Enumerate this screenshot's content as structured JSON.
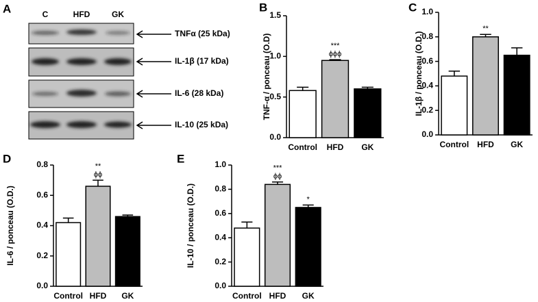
{
  "blot": {
    "panel_label": "A",
    "lanes": [
      "C",
      "HFD",
      "GK"
    ],
    "bands": [
      "TNFα (25 kDa)",
      "IL-1β (17 kDa)",
      "IL-6 (28 kDa)",
      "IL-10 (25 kDa)"
    ]
  },
  "chart_data": [
    {
      "type": "bar",
      "panel_label": "B",
      "y_label": "TNF-α / ponceau (O.D)",
      "categories": [
        "Control",
        "HFD",
        "GK"
      ],
      "values": [
        0.58,
        0.95,
        0.6
      ],
      "errors": [
        0.04,
        0.01,
        0.02
      ],
      "colors": [
        "#ffffff",
        "#bdbdbd",
        "#000000"
      ],
      "annotations": [
        null,
        [
          "***",
          "ϕϕϕ"
        ],
        null
      ],
      "ylim": [
        0,
        1.5
      ],
      "yticks": [
        {
          "value": 0,
          "label": "0.0"
        },
        0.5,
        {
          "value": 1,
          "label": "1.0"
        },
        1.5
      ]
    },
    {
      "type": "bar",
      "panel_label": "C",
      "y_label": "IL-1β / ponceau (O.D.)",
      "categories": [
        "Control",
        "HFD",
        "GK"
      ],
      "values": [
        0.48,
        0.8,
        0.65
      ],
      "errors": [
        0.04,
        0.02,
        0.06
      ],
      "colors": [
        "#ffffff",
        "#bdbdbd",
        "#000000"
      ],
      "annotations": [
        null,
        [
          "**"
        ],
        null
      ],
      "ylim": [
        0,
        1.0
      ],
      "yticks": [
        {
          "value": 0,
          "label": "0.0"
        },
        0.2,
        0.4,
        0.6,
        0.8,
        {
          "value": 1,
          "label": "1.0"
        }
      ]
    },
    {
      "type": "bar",
      "panel_label": "D",
      "y_label": "IL-6 / ponceau (O.D.)",
      "categories": [
        "Control",
        "HFD",
        "GK"
      ],
      "values": [
        0.42,
        0.66,
        0.46
      ],
      "errors": [
        0.03,
        0.04,
        0.01
      ],
      "colors": [
        "#ffffff",
        "#bdbdbd",
        "#000000"
      ],
      "annotations": [
        null,
        [
          "**",
          "ϕϕ"
        ],
        null
      ],
      "ylim": [
        0,
        0.8
      ],
      "yticks": [
        {
          "value": 0,
          "label": "0.0"
        },
        0.2,
        0.4,
        0.6,
        0.8
      ]
    },
    {
      "type": "bar",
      "panel_label": "E",
      "y_label": "IL-10 / ponceau (O.D.)",
      "categories": [
        "Control",
        "HFD",
        "GK"
      ],
      "values": [
        0.48,
        0.84,
        0.65
      ],
      "errors": [
        0.05,
        0.02,
        0.02
      ],
      "colors": [
        "#ffffff",
        "#bdbdbd",
        "#000000"
      ],
      "annotations": [
        null,
        [
          "***",
          "ϕϕ"
        ],
        [
          "*"
        ]
      ],
      "ylim": [
        0,
        1.0
      ],
      "yticks": [
        {
          "value": 0,
          "label": "0.0"
        },
        0.2,
        0.4,
        0.6,
        0.8,
        {
          "value": 1,
          "label": "1.0"
        }
      ]
    }
  ]
}
